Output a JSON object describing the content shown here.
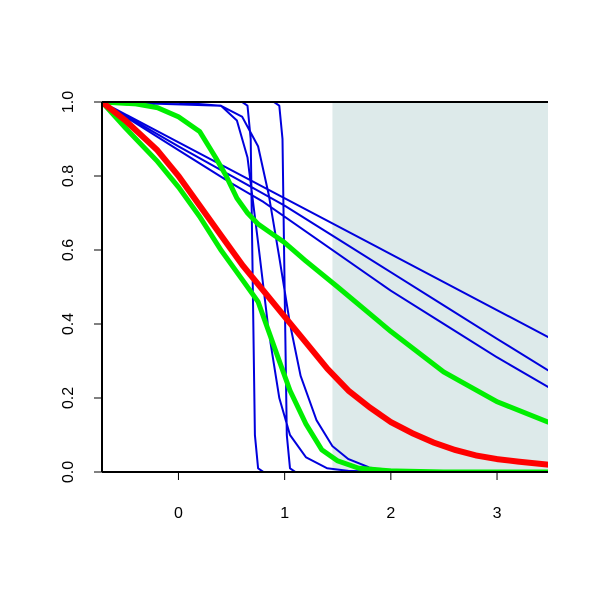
{
  "chart_data": {
    "type": "line",
    "title": "",
    "xlabel": "",
    "ylabel": "",
    "xlim": [
      -0.72,
      3.48
    ],
    "ylim": [
      0,
      1
    ],
    "x_ticks": [
      0,
      1,
      2,
      3
    ],
    "x_tick_labels": [
      "0",
      "1",
      "2",
      "3"
    ],
    "y_ticks": [
      0,
      0.2,
      0.4,
      0.6,
      0.8,
      1
    ],
    "y_tick_labels": [
      "0.0",
      "0.2",
      "0.4",
      "0.6",
      "0.8",
      "1.0"
    ],
    "grid": false,
    "legend": "none",
    "shaded_region": {
      "x_from": 1.45,
      "x_to": 3.48,
      "color": "#ddeaea"
    },
    "series": [
      {
        "color": "#0000dd",
        "width": 2,
        "points": [
          [
            -0.72,
            1
          ],
          [
            0.6,
            1
          ],
          [
            0.65,
            0.99
          ],
          [
            0.68,
            0.9
          ],
          [
            0.7,
            0.5
          ],
          [
            0.72,
            0.1
          ],
          [
            0.75,
            0.01
          ],
          [
            0.8,
            0
          ],
          [
            3.48,
            0
          ]
        ]
      },
      {
        "color": "#0000dd",
        "width": 2,
        "points": [
          [
            -0.72,
            1
          ],
          [
            0.9,
            1
          ],
          [
            0.95,
            0.99
          ],
          [
            0.98,
            0.9
          ],
          [
            1.0,
            0.5
          ],
          [
            1.02,
            0.1
          ],
          [
            1.05,
            0.01
          ],
          [
            1.1,
            0
          ],
          [
            3.48,
            0
          ]
        ]
      },
      {
        "color": "#0000dd",
        "width": 2,
        "points": [
          [
            -0.72,
            1
          ],
          [
            0.4,
            0.99
          ],
          [
            0.55,
            0.95
          ],
          [
            0.65,
            0.85
          ],
          [
            0.75,
            0.62
          ],
          [
            0.85,
            0.38
          ],
          [
            0.95,
            0.2
          ],
          [
            1.05,
            0.1
          ],
          [
            1.2,
            0.04
          ],
          [
            1.4,
            0.01
          ],
          [
            1.6,
            0.003
          ],
          [
            2.0,
            0
          ],
          [
            3.48,
            0
          ]
        ]
      },
      {
        "color": "#0000dd",
        "width": 2,
        "points": [
          [
            -0.72,
            1
          ],
          [
            0.0,
            0.999
          ],
          [
            0.4,
            0.99
          ],
          [
            0.6,
            0.96
          ],
          [
            0.75,
            0.88
          ],
          [
            0.85,
            0.75
          ],
          [
            0.95,
            0.58
          ],
          [
            1.05,
            0.4
          ],
          [
            1.15,
            0.26
          ],
          [
            1.3,
            0.14
          ],
          [
            1.45,
            0.07
          ],
          [
            1.6,
            0.035
          ],
          [
            1.8,
            0.012
          ],
          [
            2.0,
            0.004
          ],
          [
            2.3,
            0.001
          ],
          [
            3.48,
            0
          ]
        ]
      },
      {
        "color": "#0000dd",
        "width": 2,
        "points": [
          [
            -0.72,
            1
          ],
          [
            3.48,
            0.365
          ]
        ]
      },
      {
        "color": "#0000dd",
        "width": 2,
        "points": [
          [
            -0.72,
            1
          ],
          [
            0.0,
            0.88
          ],
          [
            0.5,
            0.8
          ],
          [
            1.0,
            0.72
          ],
          [
            1.5,
            0.63
          ],
          [
            2.0,
            0.54
          ],
          [
            2.5,
            0.45
          ],
          [
            3.0,
            0.36
          ],
          [
            3.48,
            0.275
          ]
        ]
      },
      {
        "color": "#0000dd",
        "width": 2,
        "points": [
          [
            -0.72,
            1
          ],
          [
            0.0,
            0.87
          ],
          [
            0.5,
            0.78
          ],
          [
            0.8,
            0.73
          ],
          [
            1.0,
            0.69
          ],
          [
            1.5,
            0.59
          ],
          [
            2.0,
            0.49
          ],
          [
            2.5,
            0.4
          ],
          [
            3.0,
            0.31
          ],
          [
            3.48,
            0.23
          ]
        ]
      },
      {
        "color": "#00ee00",
        "width": 5,
        "points": [
          [
            -0.72,
            1
          ],
          [
            -0.4,
            0.995
          ],
          [
            -0.2,
            0.985
          ],
          [
            0.0,
            0.96
          ],
          [
            0.2,
            0.92
          ],
          [
            0.35,
            0.85
          ],
          [
            0.45,
            0.8
          ],
          [
            0.55,
            0.74
          ],
          [
            0.65,
            0.7
          ],
          [
            0.75,
            0.67
          ],
          [
            0.85,
            0.65
          ],
          [
            1.0,
            0.62
          ],
          [
            1.2,
            0.57
          ],
          [
            1.5,
            0.5
          ],
          [
            2.0,
            0.38
          ],
          [
            2.5,
            0.27
          ],
          [
            3.0,
            0.19
          ],
          [
            3.48,
            0.135
          ]
        ]
      },
      {
        "color": "#00ee00",
        "width": 5,
        "points": [
          [
            -0.72,
            1
          ],
          [
            -0.5,
            0.93
          ],
          [
            -0.2,
            0.84
          ],
          [
            0.0,
            0.77
          ],
          [
            0.2,
            0.69
          ],
          [
            0.4,
            0.6
          ],
          [
            0.6,
            0.52
          ],
          [
            0.75,
            0.46
          ],
          [
            0.85,
            0.38
          ],
          [
            0.95,
            0.3
          ],
          [
            1.05,
            0.22
          ],
          [
            1.2,
            0.13
          ],
          [
            1.35,
            0.06
          ],
          [
            1.5,
            0.03
          ],
          [
            1.7,
            0.01
          ],
          [
            2.0,
            0.003
          ],
          [
            2.5,
            0
          ],
          [
            3.48,
            0
          ]
        ]
      },
      {
        "color": "#ff0000",
        "width": 6,
        "points": [
          [
            -0.72,
            1
          ],
          [
            -0.5,
            0.95
          ],
          [
            -0.2,
            0.87
          ],
          [
            0.0,
            0.8
          ],
          [
            0.2,
            0.72
          ],
          [
            0.4,
            0.64
          ],
          [
            0.6,
            0.56
          ],
          [
            0.8,
            0.49
          ],
          [
            1.0,
            0.42
          ],
          [
            1.2,
            0.35
          ],
          [
            1.4,
            0.28
          ],
          [
            1.6,
            0.22
          ],
          [
            1.8,
            0.175
          ],
          [
            2.0,
            0.135
          ],
          [
            2.2,
            0.105
          ],
          [
            2.4,
            0.08
          ],
          [
            2.6,
            0.06
          ],
          [
            2.8,
            0.045
          ],
          [
            3.0,
            0.035
          ],
          [
            3.2,
            0.028
          ],
          [
            3.48,
            0.02
          ]
        ]
      }
    ]
  }
}
